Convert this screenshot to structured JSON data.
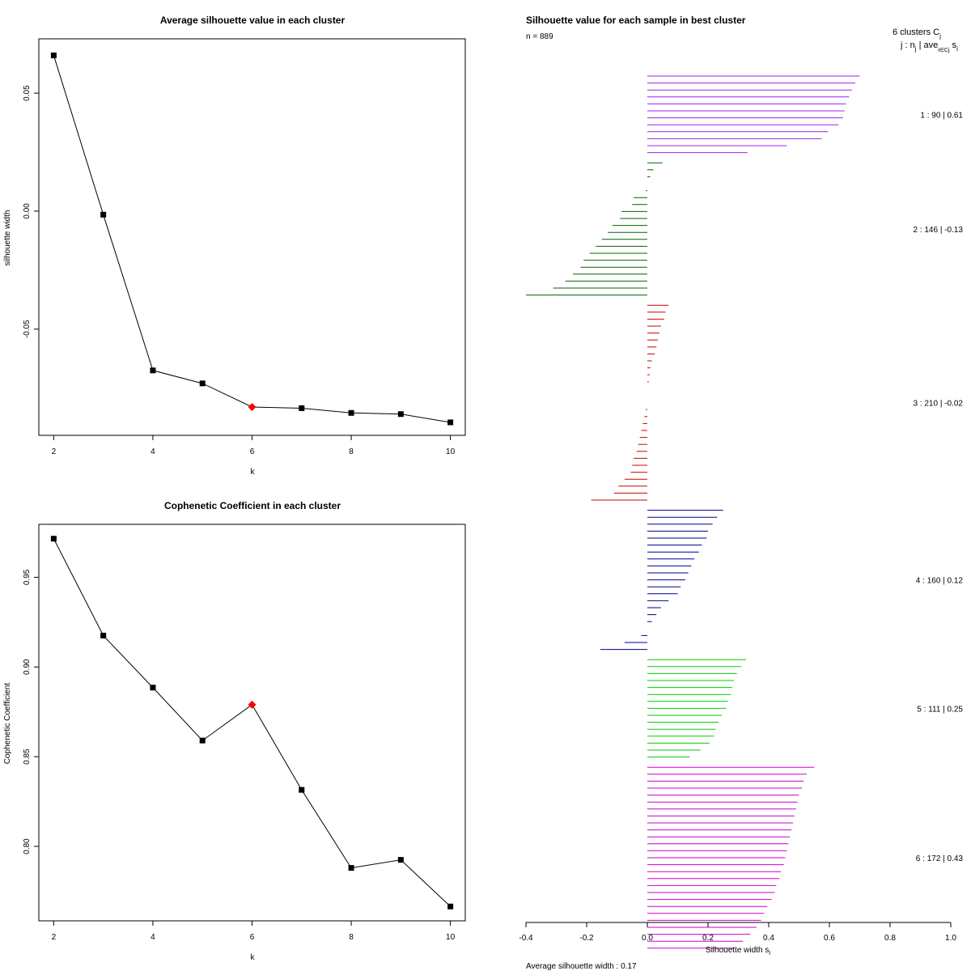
{
  "chart_data": [
    {
      "type": "line",
      "title": "Average silhouette value in each cluster",
      "xlabel": "k",
      "ylabel": "silhouette width",
      "x": [
        2,
        3,
        4,
        5,
        6,
        7,
        8,
        9,
        10
      ],
      "y": [
        0.066,
        -0.0015,
        -0.0675,
        -0.073,
        -0.083,
        -0.0835,
        -0.0855,
        -0.086,
        -0.0895
      ],
      "highlight_k": 6,
      "highlight_color": "#ff0000",
      "xlim": [
        1.7,
        10.3
      ],
      "ylim": [
        -0.095,
        0.073
      ],
      "xticks": [
        2,
        4,
        6,
        8,
        10
      ],
      "yticks": [
        -0.05,
        0.0,
        0.05
      ],
      "ytick_labels": [
        "-0.05",
        "0.00",
        "0.05"
      ]
    },
    {
      "type": "line",
      "title": "Cophenetic Coefficient in each cluster",
      "xlabel": "k",
      "ylabel": "Cophenetic Coefficient",
      "x": [
        2,
        3,
        4,
        5,
        6,
        7,
        8,
        9,
        10
      ],
      "y": [
        0.9715,
        0.9175,
        0.8885,
        0.859,
        0.879,
        0.8315,
        0.788,
        0.7925,
        0.7665
      ],
      "highlight_k": 6,
      "highlight_color": "#ff0000",
      "xlim": [
        1.7,
        10.3
      ],
      "ylim": [
        0.7585,
        0.9795
      ],
      "xticks": [
        2,
        4,
        6,
        8,
        10
      ],
      "yticks": [
        0.8,
        0.85,
        0.9,
        0.95
      ],
      "ytick_labels": [
        "0.80",
        "0.85",
        "0.90",
        "0.95"
      ]
    },
    {
      "type": "bar",
      "orientation": "horizontal",
      "title": "Silhouette value for each sample in best cluster",
      "subtitle": "n = 889",
      "xlabel": "Silhouette width s",
      "xlabel_sub": "i",
      "xlim": [
        -0.4,
        1.0
      ],
      "xticks": [
        -0.4,
        -0.2,
        0.0,
        0.2,
        0.4,
        0.6,
        0.8,
        1.0
      ],
      "xtick_labels": [
        "-0.4",
        "-0.2",
        "0.0",
        "0.2",
        "0.4",
        "0.6",
        "0.8",
        "1.0"
      ],
      "legend_header_line1": "6  clusters  C",
      "legend_header_line1_sub": "j",
      "legend_header_line2": "j :  n",
      "legend_header_line2_a": " | ave",
      "legend_header_line2_b": "  s",
      "legend_header_line2_sub1": "j",
      "legend_header_line2_sub2": "i∈Cj",
      "legend_header_line2_sub3": "i",
      "footer": "Average silhouette width :  0.17",
      "clusters": [
        {
          "id": 1,
          "n": 90,
          "avg": 0.61,
          "label": "1 :   90  |  0.61",
          "color": "#a020f0",
          "values": [
            0.7,
            0.685,
            0.675,
            0.665,
            0.655,
            0.65,
            0.645,
            0.63,
            0.595,
            0.575,
            0.46,
            0.33
          ]
        },
        {
          "id": 2,
          "n": 146,
          "avg": -0.13,
          "label": "2 :   146  |  -0.13",
          "color": "#006400",
          "values": [
            0.05,
            0.02,
            0.01,
            0.0,
            -0.005,
            -0.045,
            -0.05,
            -0.085,
            -0.09,
            -0.115,
            -0.13,
            -0.15,
            -0.17,
            -0.19,
            -0.21,
            -0.22,
            -0.245,
            -0.27,
            -0.31,
            -0.4
          ]
        },
        {
          "id": 3,
          "n": 210,
          "avg": -0.02,
          "label": "3 :   210  |  -0.02",
          "color": "#cc0000",
          "values": [
            0.07,
            0.06,
            0.055,
            0.045,
            0.04,
            0.035,
            0.03,
            0.025,
            0.015,
            0.01,
            0.008,
            0.005,
            0.0,
            0.0,
            0.0,
            -0.005,
            -0.01,
            -0.015,
            -0.02,
            -0.025,
            -0.03,
            -0.035,
            -0.045,
            -0.05,
            -0.055,
            -0.075,
            -0.095,
            -0.11,
            -0.185
          ]
        },
        {
          "id": 4,
          "n": 160,
          "avg": 0.12,
          "label": "4 :   160  |  0.12",
          "color": "#00008b",
          "values": [
            0.25,
            0.23,
            0.215,
            0.2,
            0.195,
            0.18,
            0.17,
            0.155,
            0.145,
            0.135,
            0.125,
            0.11,
            0.1,
            0.07,
            0.045,
            0.03,
            0.015,
            0.0,
            -0.02,
            -0.075,
            -0.155
          ]
        },
        {
          "id": 5,
          "n": 111,
          "avg": 0.25,
          "label": "5 :   111  |  0.25",
          "color": "#00cd00",
          "values": [
            0.325,
            0.31,
            0.295,
            0.285,
            0.28,
            0.275,
            0.265,
            0.26,
            0.245,
            0.235,
            0.225,
            0.22,
            0.205,
            0.175,
            0.14
          ]
        },
        {
          "id": 6,
          "n": 172,
          "avg": 0.43,
          "label": "6 :   172  |  0.43",
          "color": "#cc00cc",
          "values": [
            0.55,
            0.525,
            0.515,
            0.51,
            0.5,
            0.495,
            0.49,
            0.485,
            0.48,
            0.475,
            0.47,
            0.465,
            0.46,
            0.455,
            0.45,
            0.44,
            0.435,
            0.425,
            0.42,
            0.41,
            0.395,
            0.385,
            0.375,
            0.36,
            0.34,
            0.315,
            0.285
          ]
        }
      ]
    }
  ]
}
